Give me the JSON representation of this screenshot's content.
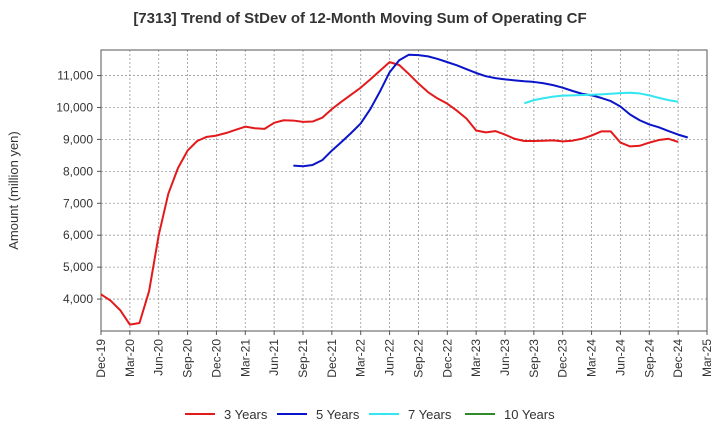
{
  "chart_data": {
    "type": "line",
    "title": "[7313]  Trend of StDev of 12-Month Moving Sum of Operating CF",
    "ylabel": "Amount (million yen)",
    "xlabel": "",
    "ylim": [
      3000,
      11800
    ],
    "yticks": [
      4000,
      5000,
      6000,
      7000,
      8000,
      9000,
      10000,
      11000
    ],
    "ytick_labels": [
      "4,000",
      "5,000",
      "6,000",
      "7,000",
      "8,000",
      "9,000",
      "10,000",
      "11,000"
    ],
    "xticks": [
      "Dec-19",
      "Mar-20",
      "Jun-20",
      "Sep-20",
      "Dec-20",
      "Mar-21",
      "Jun-21",
      "Sep-21",
      "Dec-21",
      "Mar-22",
      "Jun-22",
      "Sep-22",
      "Dec-22",
      "Mar-23",
      "Jun-23",
      "Sep-23",
      "Dec-23",
      "Mar-24",
      "Jun-24",
      "Sep-24",
      "Dec-24",
      "Mar-25"
    ],
    "x_start": "Dec-19",
    "grid": true,
    "legend_position": "bottom",
    "series": [
      {
        "name": "3 Years",
        "color": "#e31a1c",
        "start": "Dec-19",
        "values": [
          4150,
          3950,
          3650,
          3200,
          3250,
          4250,
          6000,
          7300,
          8100,
          8650,
          8950,
          9080,
          9120,
          9200,
          9300,
          9400,
          9350,
          9330,
          9520,
          9600,
          9590,
          9550,
          9560,
          9680,
          9950,
          10180,
          10400,
          10620,
          10880,
          11150,
          11420,
          11330,
          11050,
          10750,
          10480,
          10280,
          10120,
          9900,
          9650,
          9280,
          9220,
          9260,
          9150,
          9020,
          8950,
          8950,
          8960,
          8970,
          8940,
          8960,
          9020,
          9120,
          9250,
          9250,
          8900,
          8780,
          8800,
          8900,
          8980,
          9020,
          8920
        ]
      },
      {
        "name": "5 Years",
        "color": "#0a14c8",
        "start": "Aug-21",
        "values": [
          8180,
          8160,
          8200,
          8350,
          8650,
          8920,
          9200,
          9500,
          9950,
          10500,
          11100,
          11480,
          11650,
          11640,
          11600,
          11520,
          11420,
          11320,
          11200,
          11080,
          10980,
          10920,
          10880,
          10850,
          10820,
          10800,
          10760,
          10700,
          10620,
          10520,
          10430,
          10380,
          10300,
          10200,
          10030,
          9780,
          9600,
          9470,
          9380,
          9260,
          9150,
          9060
        ]
      },
      {
        "name": "7 Years",
        "color": "#33e6f0",
        "start": "Aug-23",
        "values": [
          10130,
          10230,
          10290,
          10340,
          10370,
          10380,
          10390,
          10400,
          10410,
          10430,
          10450,
          10460,
          10440,
          10380,
          10300,
          10230,
          10180
        ]
      },
      {
        "name": "10 Years",
        "color": "#2e8b2e",
        "start": "Dec-19",
        "values": []
      }
    ]
  }
}
